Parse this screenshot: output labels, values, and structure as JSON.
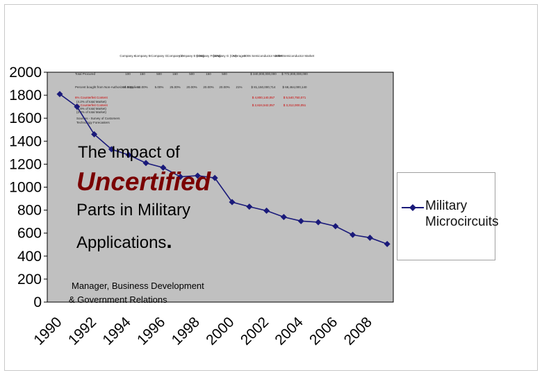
{
  "chart_data": {
    "type": "line",
    "title": "",
    "xlabel": "",
    "ylabel": "",
    "ylim": [
      0,
      2000
    ],
    "yticks": [
      0,
      200,
      400,
      600,
      800,
      1000,
      1200,
      1400,
      1600,
      1800,
      2000
    ],
    "xticks": [
      "1990",
      "1992",
      "1994",
      "1996",
      "1998",
      "2000",
      "2002",
      "2004",
      "2006",
      "2008"
    ],
    "grid": false,
    "legend_position": "right",
    "x": [
      1990,
      1991,
      1992,
      1993,
      1994,
      1995,
      1996,
      1997,
      1998,
      1999,
      2000,
      2001,
      2002,
      2003,
      2004,
      2005,
      2006,
      2007,
      2008,
      2009
    ],
    "series": [
      {
        "name": "Military Microcircuits",
        "color": "#1a1a7a",
        "values": [
          1810,
          1700,
          1460,
          1330,
          1280,
          1210,
          1170,
          1090,
          1100,
          1080,
          870,
          830,
          795,
          740,
          705,
          695,
          660,
          585,
          560,
          505
        ]
      }
    ]
  },
  "overlay": {
    "title_line1": "The Impact of",
    "title_line2": "Uncertified",
    "title_line3": "Parts in Military",
    "title_line4": "Applications",
    "title_period": ".",
    "role_line1": "Manager, Business Development",
    "role_line2": "& Government Relations"
  },
  "embedded_table": {
    "header": [
      "Company A",
      "Company B",
      "Company C",
      "Company D",
      "Company E (IDM)",
      "Company F (IDM)",
      "Company G (CM)",
      "Averages",
      "2006 Semiconductor Market",
      "2008 Semiconductor Market"
    ],
    "rows": [
      {
        "label": "Total Procured",
        "cells": [
          "100",
          "150",
          "500",
          "150",
          "500",
          "150",
          "500",
          "",
          "$ 340,000,000,000",
          "$ 772,000,000,000"
        ],
        "red": false
      },
      {
        "label": "Percent bought from Non-Authorized Suppliers",
        "cells": [
          "15.00%",
          "10.00%",
          "5.00%",
          "25.00%",
          "20.00%",
          "20.00%",
          "20.00%",
          "21%",
          "$ 81,150,000,714",
          "$ 68,464,000,140"
        ],
        "red": false
      },
      {
        "label": "6% Counterfeit Content",
        "cells": [
          "",
          "",
          "",
          "",
          "",
          "",
          "",
          "",
          "$ 4,800,140,057",
          "$ 5,540,750,071"
        ],
        "red": true
      },
      {
        "label": "4% Counterfeit Content",
        "cells": [
          "",
          "",
          "",
          "",
          "",
          "",
          "",
          "",
          "$ 2,624,542,057",
          "$ 3,312,000,051"
        ],
        "red": true
      }
    ],
    "notes": [
      "(4.2% of total Market)",
      "(2.8% of total Market)",
      "(2.8% of total Market)",
      "Sources - Survey of Customers",
      "Technology Forecasters"
    ]
  }
}
